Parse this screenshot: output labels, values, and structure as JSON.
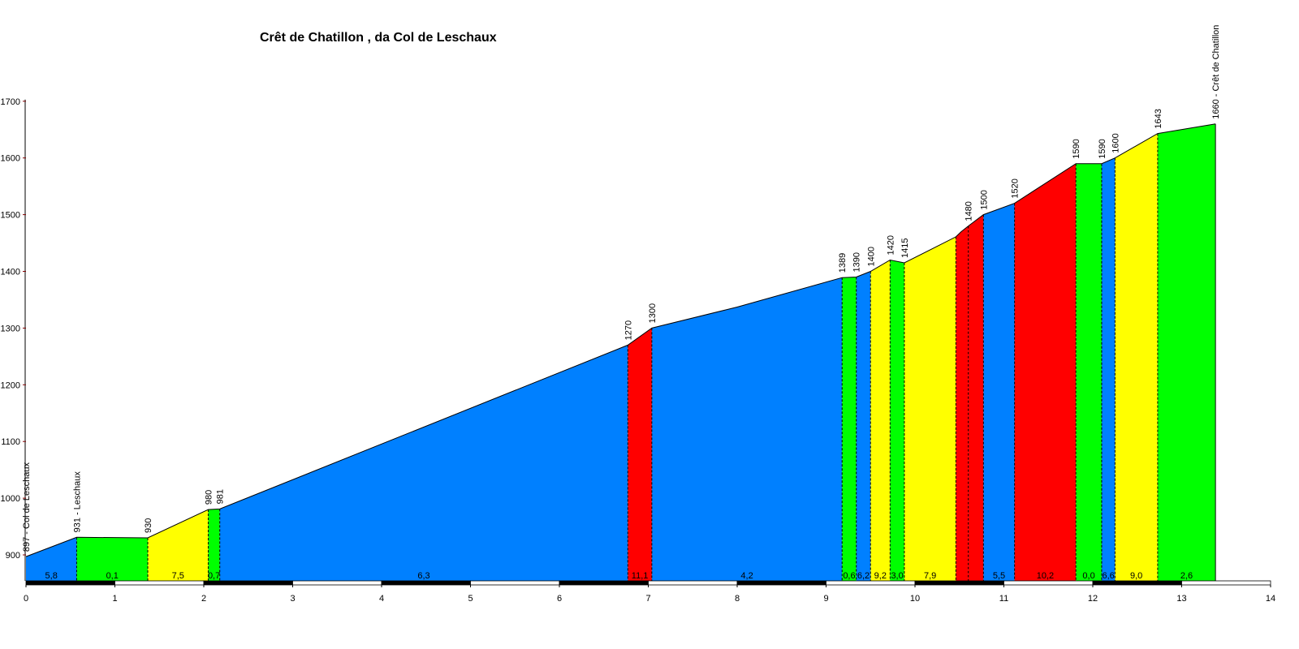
{
  "chart_data": {
    "type": "area",
    "title": "Crêt de Chatillon , da Col de Leschaux",
    "xlabel": "",
    "ylabel": "",
    "xlim": [
      0,
      14
    ],
    "ylim": [
      850,
      1700
    ],
    "x_ticks": [
      "0",
      "1",
      "2",
      "3",
      "4",
      "5",
      "6",
      "7",
      "8",
      "9",
      "10",
      "11",
      "12",
      "13",
      "14"
    ],
    "y_ticks": [
      "900",
      "1000",
      "1100",
      "1200",
      "1300",
      "1400",
      "1500",
      "1600",
      "1700"
    ],
    "colors": {
      "blue": "#0080ff",
      "green": "#00ff00",
      "yellow": "#ffff00",
      "red": "#ff0000"
    },
    "segments": [
      {
        "x0": 0.0,
        "x1": 0.57,
        "color": "blue",
        "gradient": "5,8",
        "points": [
          [
            0.0,
            897
          ],
          [
            0.57,
            931
          ]
        ]
      },
      {
        "x0": 0.57,
        "x1": 1.37,
        "color": "green",
        "gradient": "0,1",
        "points": [
          [
            0.57,
            931
          ],
          [
            1.37,
            930
          ]
        ]
      },
      {
        "x0": 1.37,
        "x1": 2.05,
        "color": "yellow",
        "gradient": "7,5",
        "points": [
          [
            1.37,
            930
          ],
          [
            2.05,
            980
          ]
        ]
      },
      {
        "x0": 2.05,
        "x1": 2.18,
        "color": "green",
        "gradient": "0,7",
        "points": [
          [
            2.05,
            980
          ],
          [
            2.18,
            981
          ]
        ]
      },
      {
        "x0": 2.18,
        "x1": 6.77,
        "color": "blue",
        "gradient": "6,3",
        "points": [
          [
            2.18,
            981
          ],
          [
            6.77,
            1270
          ]
        ]
      },
      {
        "x0": 6.77,
        "x1": 7.04,
        "color": "red",
        "gradient": "11,1",
        "points": [
          [
            6.77,
            1270
          ],
          [
            7.04,
            1300
          ]
        ]
      },
      {
        "x0": 7.04,
        "x1": 9.18,
        "color": "blue",
        "gradient": "4,2",
        "points": [
          [
            7.04,
            1300
          ],
          [
            8.0,
            1337
          ],
          [
            9.18,
            1389
          ]
        ]
      },
      {
        "x0": 9.18,
        "x1": 9.34,
        "color": "green",
        "gradient": "0,6",
        "points": [
          [
            9.18,
            1389
          ],
          [
            9.34,
            1390
          ]
        ]
      },
      {
        "x0": 9.34,
        "x1": 9.5,
        "color": "blue",
        "gradient": "6,2",
        "points": [
          [
            9.34,
            1390
          ],
          [
            9.5,
            1400
          ]
        ]
      },
      {
        "x0": 9.5,
        "x1": 9.72,
        "color": "yellow",
        "gradient": "9,2",
        "points": [
          [
            9.5,
            1400
          ],
          [
            9.72,
            1420
          ]
        ]
      },
      {
        "x0": 9.72,
        "x1": 9.88,
        "color": "green",
        "gradient": "3,0",
        "points": [
          [
            9.72,
            1420
          ],
          [
            9.88,
            1415
          ]
        ]
      },
      {
        "x0": 9.88,
        "x1": 10.46,
        "color": "yellow",
        "gradient": "7,9",
        "points": [
          [
            9.88,
            1415
          ],
          [
            10.46,
            1461
          ]
        ]
      },
      {
        "x0": 10.46,
        "x1": 10.6,
        "color": "red",
        "gradient": "",
        "points": [
          [
            10.46,
            1461
          ],
          [
            10.52,
            1470
          ],
          [
            10.6,
            1480
          ]
        ]
      },
      {
        "x0": 10.6,
        "x1": 10.77,
        "color": "red",
        "gradient": "",
        "points": [
          [
            10.6,
            1480
          ],
          [
            10.77,
            1500
          ]
        ]
      },
      {
        "x0": 10.77,
        "x1": 11.12,
        "color": "blue",
        "gradient": "5,5",
        "points": [
          [
            10.77,
            1500
          ],
          [
            11.12,
            1520
          ]
        ]
      },
      {
        "x0": 11.12,
        "x1": 11.81,
        "color": "red",
        "gradient": "10,2",
        "points": [
          [
            11.12,
            1520
          ],
          [
            11.81,
            1590
          ]
        ]
      },
      {
        "x0": 11.81,
        "x1": 12.1,
        "color": "green",
        "gradient": "0,0",
        "points": [
          [
            11.81,
            1590
          ],
          [
            12.1,
            1590
          ]
        ]
      },
      {
        "x0": 12.1,
        "x1": 12.25,
        "color": "blue",
        "gradient": "6,6",
        "points": [
          [
            12.1,
            1590
          ],
          [
            12.25,
            1600
          ]
        ]
      },
      {
        "x0": 12.25,
        "x1": 12.73,
        "color": "yellow",
        "gradient": "9,0",
        "points": [
          [
            12.25,
            1600
          ],
          [
            12.73,
            1643
          ]
        ]
      },
      {
        "x0": 12.73,
        "x1": 13.38,
        "color": "green",
        "gradient": "2,6",
        "points": [
          [
            12.73,
            1643
          ],
          [
            13.38,
            1660
          ]
        ]
      }
    ],
    "point_labels": [
      {
        "x": 0.0,
        "y": 897,
        "text": "897 - Col de Leschaux"
      },
      {
        "x": 0.57,
        "y": 931,
        "text": "931 - Leschaux"
      },
      {
        "x": 1.37,
        "y": 930,
        "text": "930"
      },
      {
        "x": 2.05,
        "y": 980,
        "text": "980"
      },
      {
        "x": 2.18,
        "y": 981,
        "text": "981"
      },
      {
        "x": 6.77,
        "y": 1270,
        "text": "1270"
      },
      {
        "x": 7.04,
        "y": 1300,
        "text": "1300"
      },
      {
        "x": 9.18,
        "y": 1389,
        "text": "1389"
      },
      {
        "x": 9.34,
        "y": 1390,
        "text": "1390"
      },
      {
        "x": 9.5,
        "y": 1400,
        "text": "1400"
      },
      {
        "x": 9.72,
        "y": 1420,
        "text": "1420"
      },
      {
        "x": 9.88,
        "y": 1415,
        "text": "1415"
      },
      {
        "x": 10.6,
        "y": 1480,
        "text": "1480"
      },
      {
        "x": 10.77,
        "y": 1500,
        "text": "1500"
      },
      {
        "x": 11.12,
        "y": 1520,
        "text": "1520"
      },
      {
        "x": 11.81,
        "y": 1590,
        "text": "1590"
      },
      {
        "x": 12.1,
        "y": 1590,
        "text": "1590"
      },
      {
        "x": 12.25,
        "y": 1600,
        "text": "1600"
      },
      {
        "x": 12.73,
        "y": 1643,
        "text": "1643"
      },
      {
        "x": 13.38,
        "y": 1660,
        "text": "1660 - Crêt de Chatillon"
      }
    ]
  }
}
